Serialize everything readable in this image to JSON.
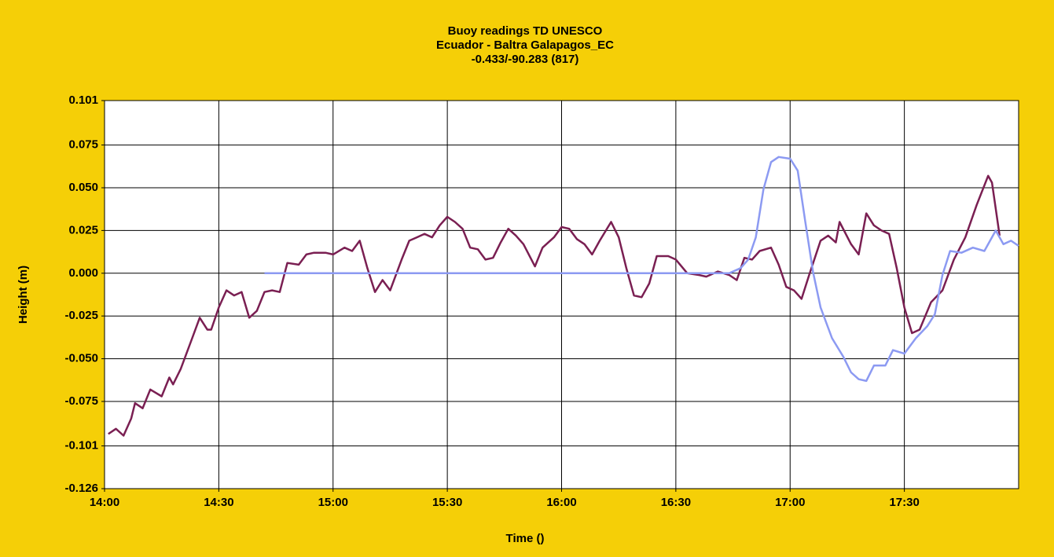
{
  "chart_data": {
    "type": "line",
    "title": [
      "Buoy readings TD UNESCO",
      "Ecuador - Baltra Galapagos_EC",
      "-0.433/-90.283 (817)"
    ],
    "ylabel": "Height (m)",
    "xlabel": "Time ()",
    "ylim": [
      -0.126,
      0.101
    ],
    "yticks": [
      0.101,
      0.075,
      {
        "value": 0.05,
        "label": "0.050"
      },
      0.025,
      {
        "value": 0,
        "label": "0.000"
      },
      -0.025,
      {
        "value": -0.05,
        "label": "-0.050"
      },
      -0.075,
      -0.101,
      -0.126
    ],
    "xlim": [
      "14:00",
      "18:00"
    ],
    "xticks": [
      "14:00",
      "14:30",
      "15:00",
      "15:30",
      "16:00",
      "16:30",
      "17:00",
      "17:30"
    ],
    "grid": true,
    "series": [
      {
        "color": "#7a1f52",
        "x": [
          "14:01",
          "14:03",
          "14:05",
          "14:07",
          "14:08",
          "14:10",
          "14:12",
          "14:15",
          "14:17",
          "14:18",
          "14:20",
          "14:23",
          "14:25",
          "14:27",
          "14:28",
          "14:30",
          "14:32",
          "14:34",
          "14:36",
          "14:38",
          "14:40",
          "14:42",
          "14:44",
          "14:46",
          "14:48",
          "14:51",
          "14:53",
          "14:55",
          "14:58",
          "15:00",
          "15:03",
          "15:05",
          "15:07",
          "15:09",
          "15:11",
          "15:13",
          "15:15",
          "15:18",
          "15:20",
          "15:22",
          "15:24",
          "15:26",
          "15:28",
          "15:30",
          "15:32",
          "15:34",
          "15:36",
          "15:38",
          "15:40",
          "15:42",
          "15:44",
          "15:46",
          "15:48",
          "15:50",
          "15:53",
          "15:55",
          "15:58",
          "16:00",
          "16:02",
          "16:04",
          "16:06",
          "16:08",
          "16:10",
          "16:13",
          "16:15",
          "16:17",
          "16:19",
          "16:21",
          "16:23",
          "16:25",
          "16:28",
          "16:30",
          "16:33",
          "16:36",
          "16:38",
          "16:41",
          "16:44",
          "16:46",
          "16:48",
          "16:50",
          "16:52",
          "16:55",
          "16:57",
          "16:59",
          "17:01",
          "17:03",
          "17:05",
          "17:08",
          "17:10",
          "17:12",
          "17:13",
          "17:16",
          "17:18",
          "17:20",
          "17:22",
          "17:24",
          "17:26",
          "17:28",
          "17:30",
          "17:32",
          "17:34",
          "17:37",
          "17:40",
          "17:43",
          "17:46",
          "17:49",
          "17:52",
          "17:53",
          "17:55"
        ],
        "values": [
          -0.094,
          -0.091,
          -0.095,
          -0.085,
          -0.076,
          -0.079,
          -0.068,
          -0.072,
          -0.061,
          -0.065,
          -0.056,
          -0.038,
          -0.026,
          -0.033,
          -0.033,
          -0.02,
          -0.01,
          -0.013,
          -0.011,
          -0.026,
          -0.022,
          -0.011,
          -0.01,
          -0.011,
          0.006,
          0.005,
          0.011,
          0.012,
          0.012,
          0.011,
          0.015,
          0.013,
          0.019,
          0.003,
          -0.011,
          -0.004,
          -0.01,
          0.008,
          0.019,
          0.021,
          0.023,
          0.021,
          0.028,
          0.033,
          0.03,
          0.026,
          0.015,
          0.014,
          0.008,
          0.009,
          0.018,
          0.026,
          0.022,
          0.017,
          0.004,
          0.015,
          0.021,
          0.027,
          0.026,
          0.02,
          0.017,
          0.011,
          0.019,
          0.03,
          0.021,
          0.003,
          -0.013,
          -0.014,
          -0.006,
          0.01,
          0.01,
          0.008,
          0.0,
          -0.001,
          -0.002,
          0.001,
          -0.001,
          -0.004,
          0.009,
          0.008,
          0.013,
          0.015,
          0.005,
          -0.008,
          -0.01,
          -0.015,
          -0.001,
          0.019,
          0.022,
          0.018,
          0.03,
          0.017,
          0.011,
          0.035,
          0.028,
          0.025,
          0.023,
          0.003,
          -0.02,
          -0.035,
          -0.033,
          -0.017,
          -0.01,
          0.008,
          0.021,
          0.04,
          0.057,
          0.053,
          0.022
        ]
      },
      {
        "color": "#8c9af2",
        "x": [
          "14:42",
          "16:44",
          "16:47",
          "16:49",
          "16:51",
          "16:53",
          "16:55",
          "16:57",
          "17:00",
          "17:02",
          "17:04",
          "17:06",
          "17:08",
          "17:11",
          "17:14",
          "17:16",
          "17:18",
          "17:20",
          "17:22",
          "17:25",
          "17:27",
          "17:30",
          "17:33",
          "17:36",
          "17:38",
          "17:40",
          "17:42",
          "17:45",
          "17:48",
          "17:51",
          "17:54",
          "17:56",
          "17:58",
          "18:00"
        ],
        "values": [
          0,
          0,
          0.003,
          0.008,
          0.021,
          0.049,
          0.065,
          0.068,
          0.067,
          0.06,
          0.03,
          0.001,
          -0.02,
          -0.038,
          -0.049,
          -0.058,
          -0.062,
          -0.063,
          -0.054,
          -0.054,
          -0.045,
          -0.047,
          -0.038,
          -0.031,
          -0.024,
          -0.001,
          0.013,
          0.012,
          0.015,
          0.013,
          0.025,
          0.017,
          0.019,
          0.016
        ]
      }
    ]
  }
}
